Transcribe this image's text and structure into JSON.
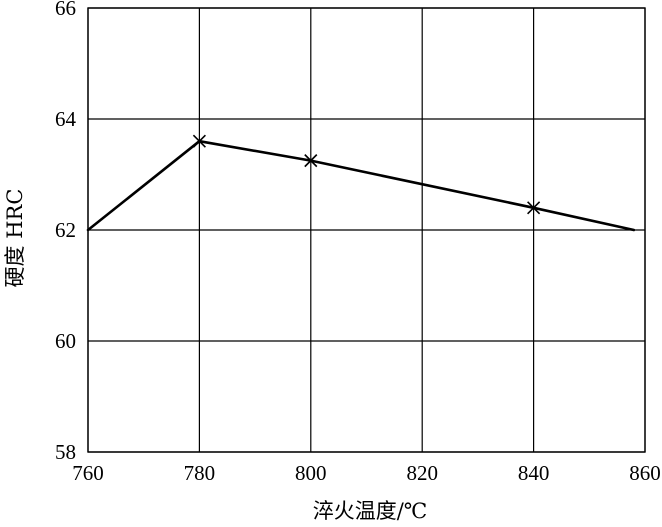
{
  "chart_data": {
    "type": "line",
    "title": "",
    "xlabel": "淬火温度/℃",
    "ylabel": "硬度 HRC",
    "xlim": [
      760,
      860
    ],
    "ylim": [
      58,
      66
    ],
    "x_ticks": [
      760,
      780,
      800,
      820,
      840,
      860
    ],
    "y_ticks": [
      58,
      60,
      62,
      64,
      66
    ],
    "x_tick_labels": [
      "760",
      "780",
      "800",
      "820",
      "840",
      "860"
    ],
    "y_tick_labels": [
      "58",
      "60",
      "62",
      "64",
      "66"
    ],
    "grid": true,
    "legend": "none",
    "series": [
      {
        "x": [
          760,
          780,
          800,
          840,
          858
        ],
        "y": [
          62.0,
          63.6,
          63.25,
          62.4,
          62.0
        ],
        "markers": [
          false,
          true,
          true,
          true,
          false
        ]
      }
    ],
    "colors": {
      "line": "#000000",
      "grid": "#000000",
      "background": "#ffffff"
    }
  }
}
